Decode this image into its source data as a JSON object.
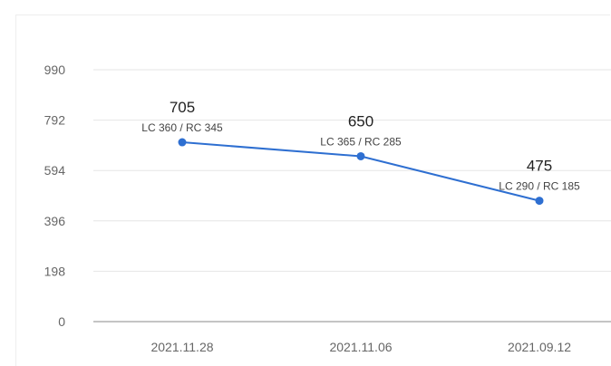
{
  "chart_data": {
    "type": "line",
    "title": "",
    "xlabel": "",
    "ylabel": "",
    "categories": [
      "2021.11.28",
      "2021.11.06",
      "2021.09.12"
    ],
    "series": [
      {
        "values": [
          705,
          650,
          475
        ],
        "detail_labels": [
          "LC 360 / RC 345",
          "LC 365 / RC 285",
          "LC 290 / RC 185"
        ],
        "color": "#2e6fd1"
      }
    ],
    "yticks": [
      0,
      198,
      396,
      594,
      792,
      990
    ],
    "ylim": [
      0,
      990
    ],
    "grid": true,
    "legend": "none"
  }
}
